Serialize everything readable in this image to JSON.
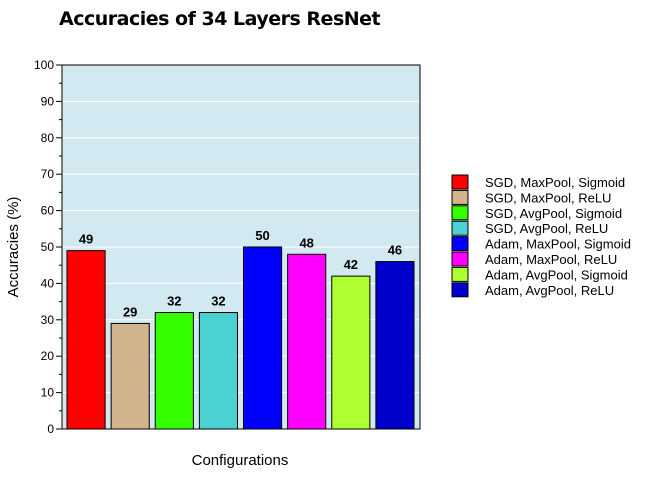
{
  "chart_data": {
    "type": "bar",
    "title": "Accuracies of 34 Layers ResNet",
    "xlabel": "Configurations",
    "ylabel": "Accuracies (%)",
    "ylim": [
      0,
      100
    ],
    "yticks": [
      0,
      10,
      20,
      30,
      40,
      50,
      60,
      70,
      80,
      90,
      100
    ],
    "grid": true,
    "legend_position": "right",
    "plot_background": "#d3e9f1",
    "categories": [
      "SGD, MaxPool, Sigmoid",
      "SGD, MaxPool, ReLU",
      "SGD, AvgPool, Sigmoid",
      "SGD, AvgPool, ReLU",
      "Adam, MaxPool, Sigmoid",
      "Adam, MaxPool, ReLU",
      "Adam, AvgPool, Sigmoid",
      "Adam, AvgPool, ReLU"
    ],
    "values": [
      49,
      29,
      32,
      32,
      50,
      48,
      42,
      46
    ],
    "colors": [
      "#ff0000",
      "#d2b48c",
      "#33ff00",
      "#4bd1d1",
      "#0000ff",
      "#ff00ff",
      "#adff2f",
      "#0000cd"
    ]
  }
}
